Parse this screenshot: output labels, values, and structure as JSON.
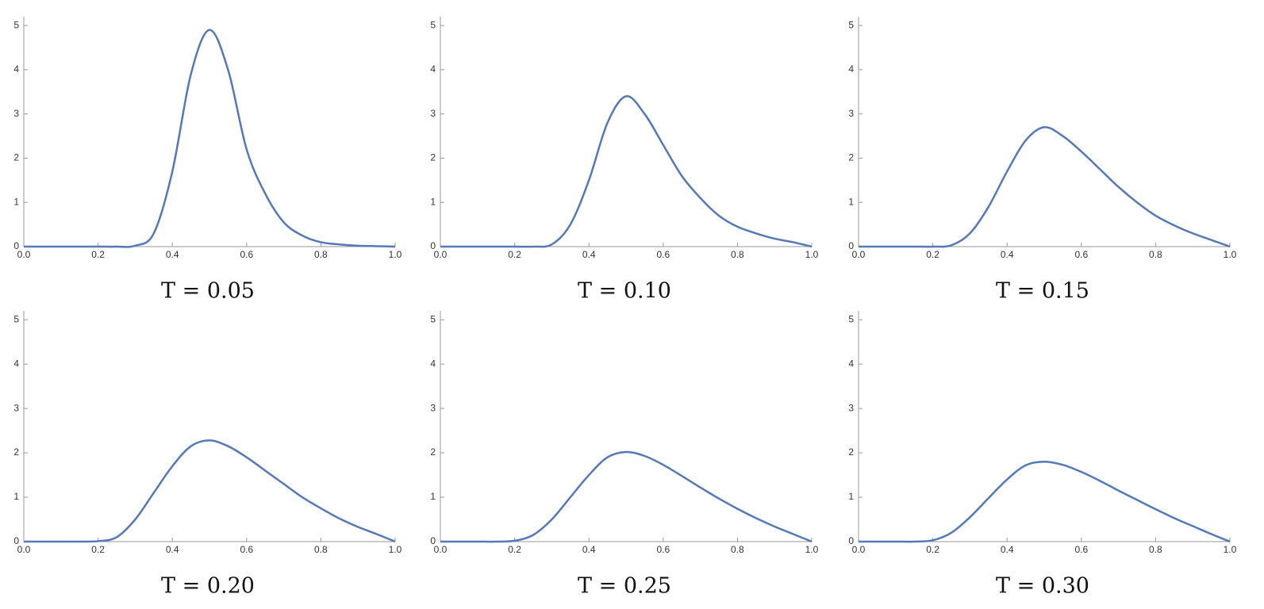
{
  "chart_data": [
    {
      "type": "line",
      "title": "T = 0.05",
      "color": "#5579b8",
      "xlim": [
        0,
        1
      ],
      "ylim": [
        0,
        5.2
      ],
      "xticks": [
        {
          "value": 0,
          "label": "0.0"
        },
        0.2,
        0.4,
        0.6,
        0.8,
        {
          "value": 1,
          "label": "1.0"
        }
      ],
      "yticks": [
        0,
        1,
        2,
        3,
        4,
        5
      ],
      "x": [
        0,
        0.05,
        0.1,
        0.15,
        0.2,
        0.25,
        0.3,
        0.35,
        0.4,
        0.45,
        0.5,
        0.55,
        0.6,
        0.65,
        0.7,
        0.75,
        0.8,
        0.85,
        0.9,
        0.95,
        1
      ],
      "values": [
        0,
        0,
        0,
        0,
        0,
        0,
        0.02,
        0.3,
        1.7,
        3.9,
        4.9,
        4.0,
        2.2,
        1.2,
        0.55,
        0.25,
        0.1,
        0.05,
        0.02,
        0.01,
        0
      ]
    },
    {
      "type": "line",
      "title": "T = 0.10",
      "color": "#5579b8",
      "xlim": [
        0,
        1
      ],
      "ylim": [
        0,
        5.2
      ],
      "xticks": [
        {
          "value": 0,
          "label": "0.0"
        },
        0.2,
        0.4,
        0.6,
        0.8,
        {
          "value": 1,
          "label": "1.0"
        }
      ],
      "yticks": [
        0,
        1,
        2,
        3,
        4,
        5
      ],
      "x": [
        0,
        0.05,
        0.1,
        0.15,
        0.2,
        0.25,
        0.3,
        0.35,
        0.4,
        0.45,
        0.5,
        0.55,
        0.6,
        0.65,
        0.7,
        0.75,
        0.8,
        0.85,
        0.9,
        0.95,
        1
      ],
      "values": [
        0,
        0,
        0,
        0,
        0,
        0,
        0.05,
        0.5,
        1.5,
        2.8,
        3.4,
        3.0,
        2.3,
        1.6,
        1.1,
        0.7,
        0.45,
        0.3,
        0.18,
        0.1,
        0
      ]
    },
    {
      "type": "line",
      "title": "T = 0.15",
      "color": "#5579b8",
      "xlim": [
        0,
        1
      ],
      "ylim": [
        0,
        5.2
      ],
      "xticks": [
        {
          "value": 0,
          "label": "0.0"
        },
        0.2,
        0.4,
        0.6,
        0.8,
        {
          "value": 1,
          "label": "1.0"
        }
      ],
      "yticks": [
        0,
        1,
        2,
        3,
        4,
        5
      ],
      "x": [
        0,
        0.05,
        0.1,
        0.15,
        0.2,
        0.25,
        0.3,
        0.35,
        0.4,
        0.45,
        0.5,
        0.55,
        0.6,
        0.65,
        0.7,
        0.75,
        0.8,
        0.85,
        0.9,
        0.95,
        1
      ],
      "values": [
        0,
        0,
        0,
        0,
        0,
        0.03,
        0.3,
        0.9,
        1.7,
        2.4,
        2.7,
        2.5,
        2.15,
        1.75,
        1.35,
        1.0,
        0.7,
        0.48,
        0.3,
        0.15,
        0
      ]
    },
    {
      "type": "line",
      "title": "T = 0.20",
      "color": "#5579b8",
      "xlim": [
        0,
        1
      ],
      "ylim": [
        0,
        5.2
      ],
      "xticks": [
        {
          "value": 0,
          "label": "0.0"
        },
        0.2,
        0.4,
        0.6,
        0.8,
        {
          "value": 1,
          "label": "1.0"
        }
      ],
      "yticks": [
        0,
        1,
        2,
        3,
        4,
        5
      ],
      "x": [
        0,
        0.05,
        0.1,
        0.15,
        0.2,
        0.25,
        0.3,
        0.35,
        0.4,
        0.45,
        0.5,
        0.55,
        0.6,
        0.65,
        0.7,
        0.75,
        0.8,
        0.85,
        0.9,
        0.95,
        1
      ],
      "values": [
        0,
        0,
        0,
        0,
        0.01,
        0.1,
        0.5,
        1.1,
        1.7,
        2.15,
        2.28,
        2.15,
        1.9,
        1.6,
        1.3,
        1.0,
        0.75,
        0.52,
        0.33,
        0.17,
        0
      ]
    },
    {
      "type": "line",
      "title": "T = 0.25",
      "color": "#5579b8",
      "xlim": [
        0,
        1
      ],
      "ylim": [
        0,
        5.2
      ],
      "xticks": [
        {
          "value": 0,
          "label": "0.0"
        },
        0.2,
        0.4,
        0.6,
        0.8,
        {
          "value": 1,
          "label": "1.0"
        }
      ],
      "yticks": [
        0,
        1,
        2,
        3,
        4,
        5
      ],
      "x": [
        0,
        0.05,
        0.1,
        0.15,
        0.2,
        0.25,
        0.3,
        0.35,
        0.4,
        0.45,
        0.5,
        0.55,
        0.6,
        0.65,
        0.7,
        0.75,
        0.8,
        0.85,
        0.9,
        0.95,
        1
      ],
      "values": [
        0,
        0,
        0,
        0,
        0.02,
        0.15,
        0.5,
        1.0,
        1.5,
        1.9,
        2.02,
        1.93,
        1.73,
        1.48,
        1.22,
        0.97,
        0.74,
        0.53,
        0.34,
        0.17,
        0
      ]
    },
    {
      "type": "line",
      "title": "T = 0.30",
      "color": "#5579b8",
      "xlim": [
        0,
        1
      ],
      "ylim": [
        0,
        5.2
      ],
      "xticks": [
        {
          "value": 0,
          "label": "0.0"
        },
        0.2,
        0.4,
        0.6,
        0.8,
        {
          "value": 1,
          "label": "1.0"
        }
      ],
      "yticks": [
        0,
        1,
        2,
        3,
        4,
        5
      ],
      "x": [
        0,
        0.05,
        0.1,
        0.15,
        0.2,
        0.25,
        0.3,
        0.35,
        0.4,
        0.45,
        0.5,
        0.55,
        0.6,
        0.65,
        0.7,
        0.75,
        0.8,
        0.85,
        0.9,
        0.95,
        1
      ],
      "values": [
        0,
        0,
        0,
        0,
        0.03,
        0.2,
        0.55,
        0.98,
        1.4,
        1.72,
        1.8,
        1.73,
        1.57,
        1.37,
        1.15,
        0.94,
        0.73,
        0.53,
        0.35,
        0.17,
        0
      ]
    }
  ]
}
